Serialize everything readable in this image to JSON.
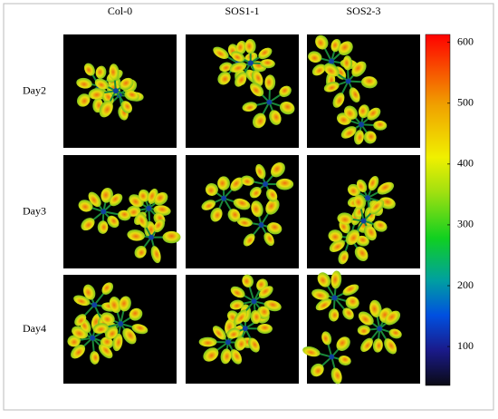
{
  "figure": {
    "columns": [
      "Col-0",
      "SOS1-1",
      "SOS2-3"
    ],
    "rows": [
      "Day2",
      "Day3",
      "Day4"
    ],
    "colorbar": {
      "lim": [
        36,
        613
      ],
      "ticks": [
        100,
        200,
        300,
        400,
        500,
        600
      ]
    }
  }
}
